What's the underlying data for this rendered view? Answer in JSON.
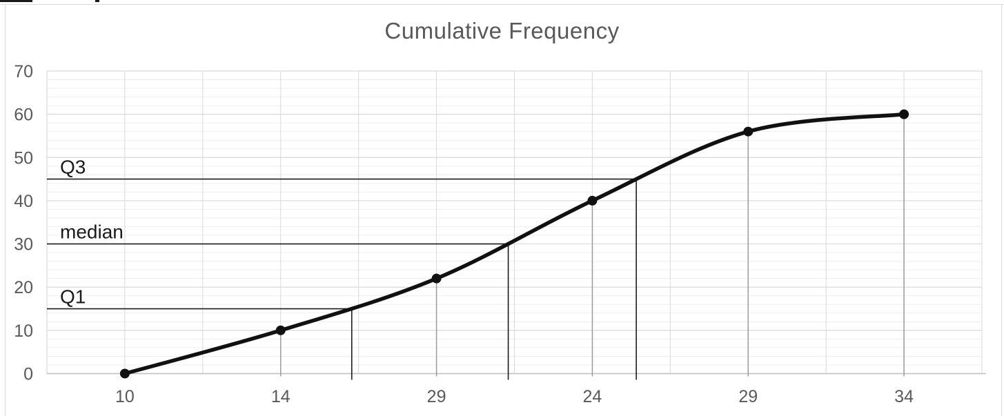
{
  "chart_data": {
    "type": "line",
    "title": "Cumulative Frequency",
    "x_tick_labels": [
      "10",
      "14",
      "29",
      "24",
      "29",
      "34"
    ],
    "y_ticks": [
      0,
      10,
      20,
      30,
      40,
      50,
      60,
      70
    ],
    "ylim": [
      0,
      70
    ],
    "minor_gridline_step": 2,
    "values": [
      0,
      10,
      22,
      40,
      56,
      60
    ],
    "annotations": [
      {
        "label": "Q1",
        "value": 15
      },
      {
        "label": "median",
        "value": 30
      },
      {
        "label": "Q3",
        "value": 45
      }
    ],
    "smooth": true,
    "marker": "circle",
    "grid": true,
    "legend": "none",
    "colors": {
      "background": "#ffffff",
      "series": "#111111",
      "grid_major": "#d9d9d9",
      "grid_minor": "#efefef",
      "axis": "#bfbfbf",
      "text": "#595959",
      "annotation": "#1a1a1a",
      "drop_line": "#9b9b9b"
    }
  }
}
